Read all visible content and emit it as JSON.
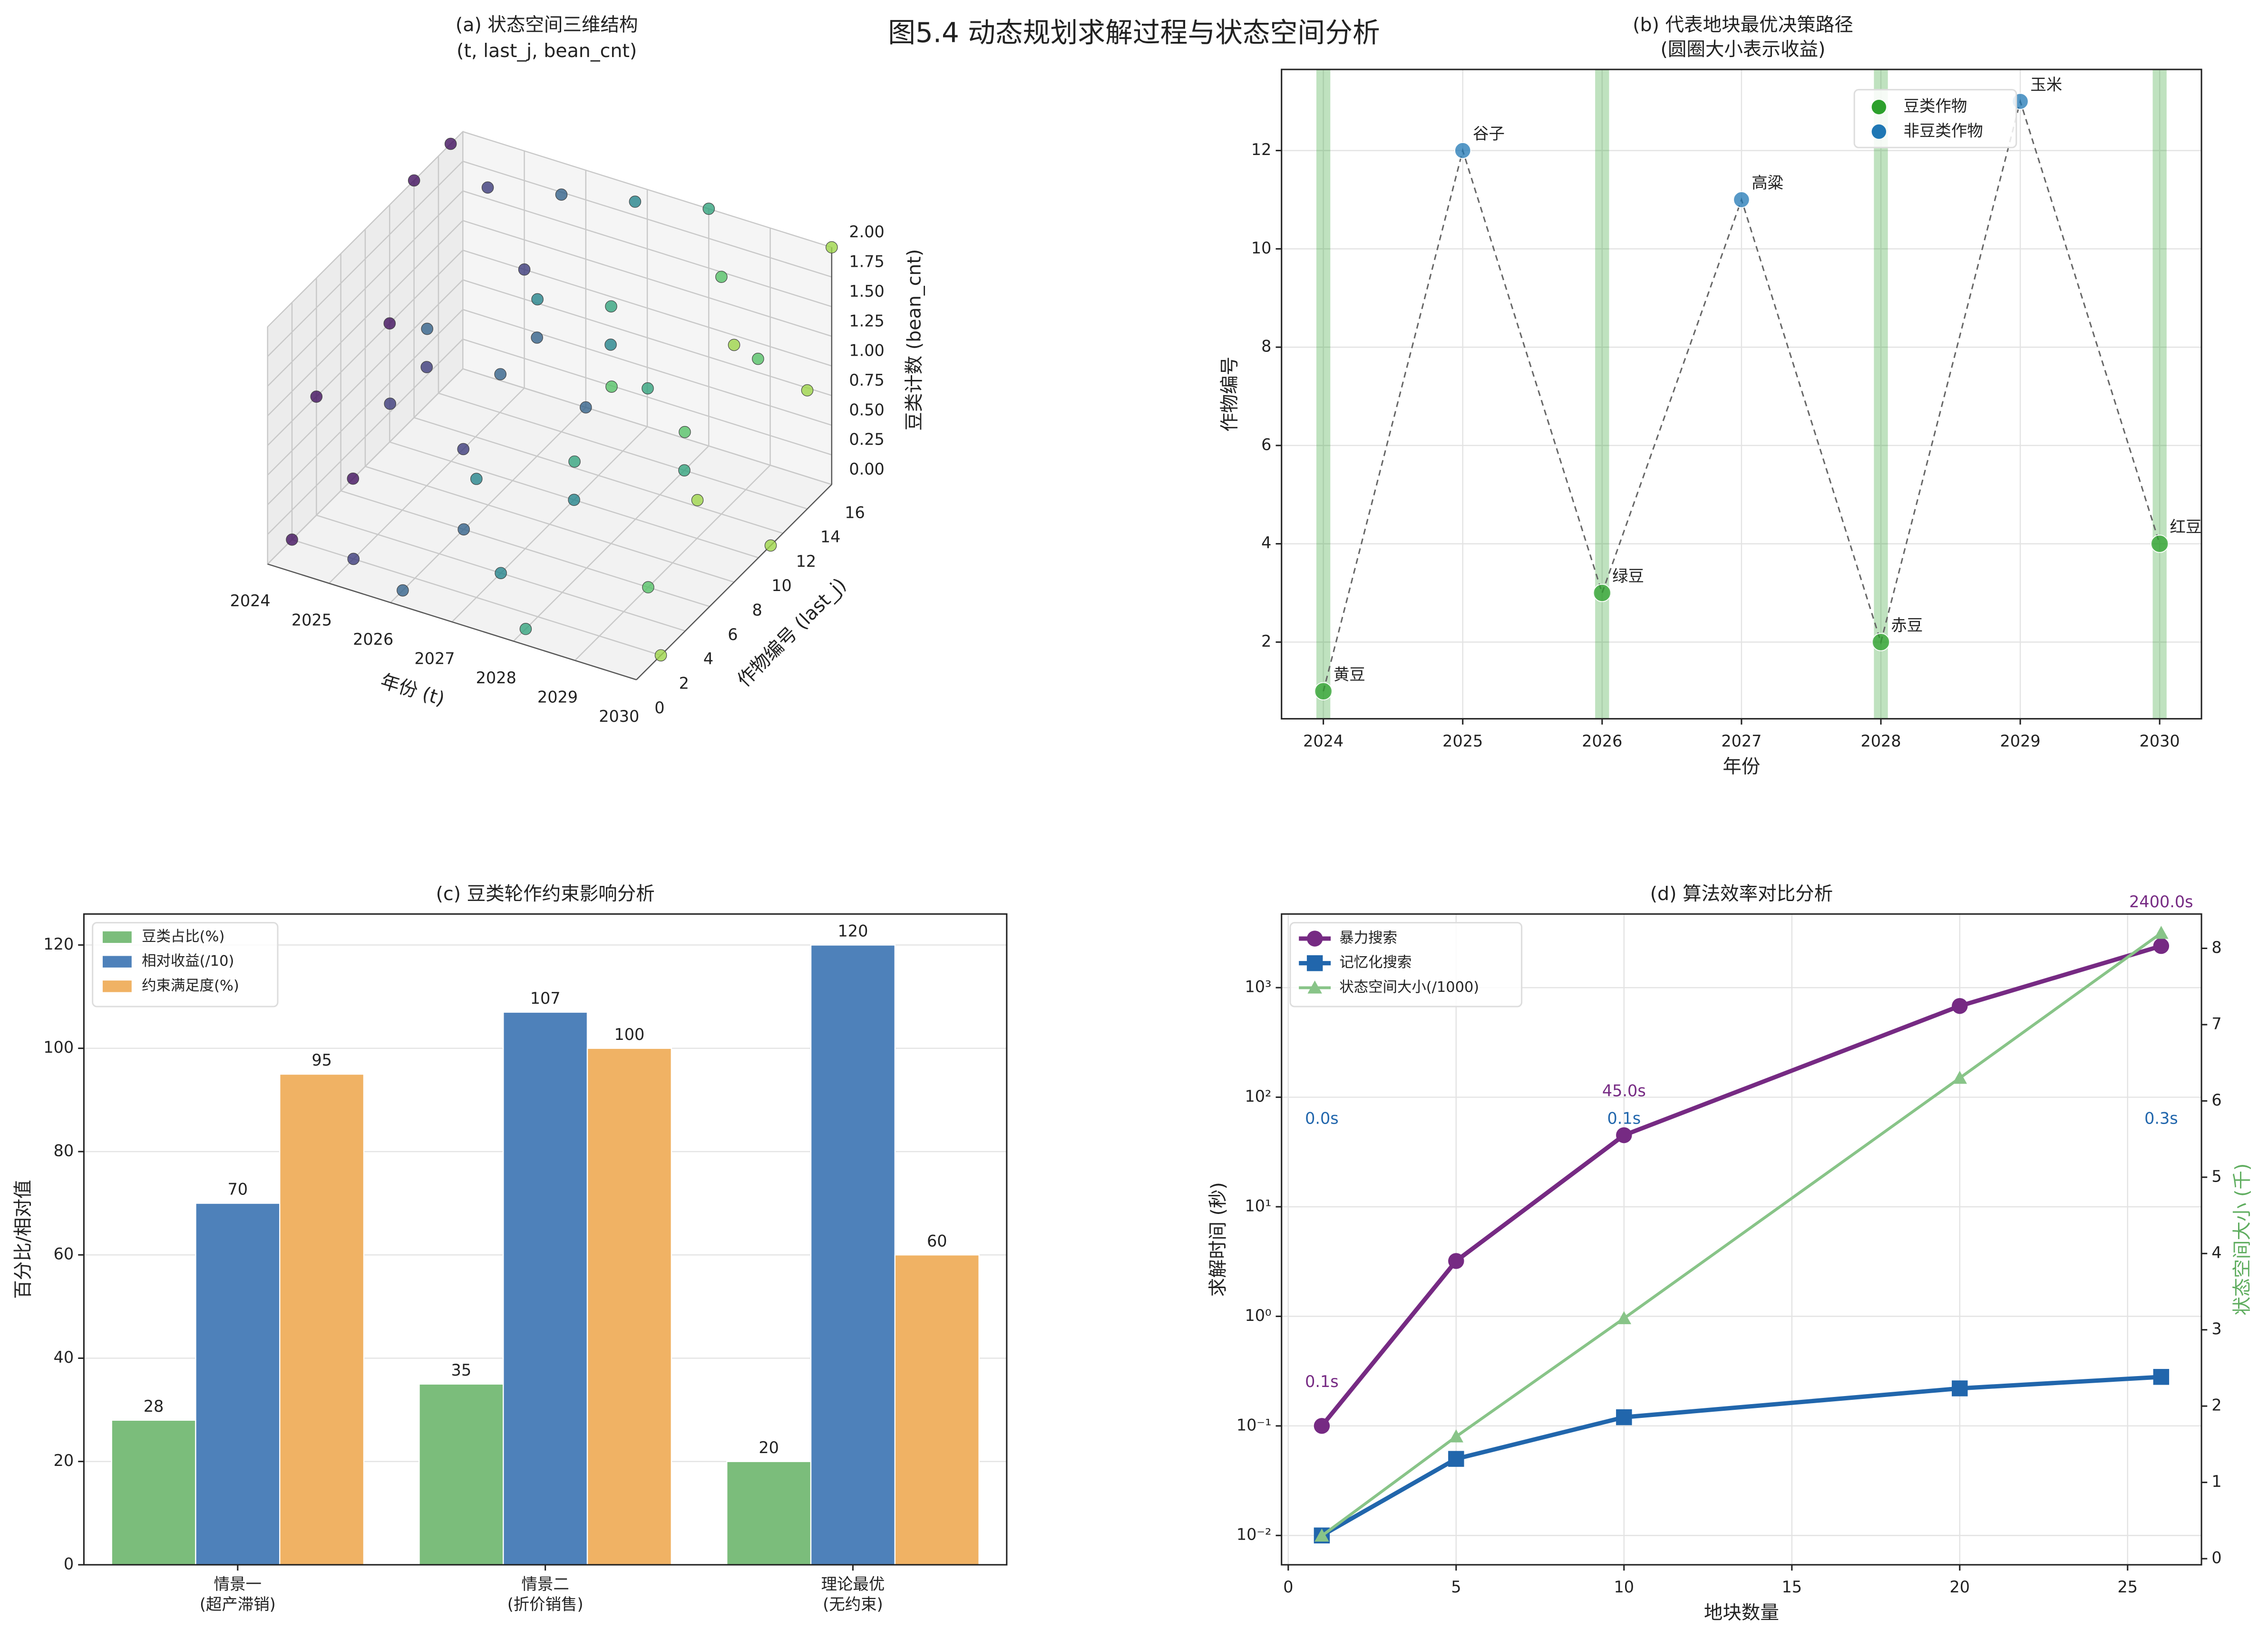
{
  "title": "图5.4 动态规划求解过程与状态空间分析",
  "chart_data": [
    {
      "type": "scatter3d",
      "title": [
        "(a) 状态空间三维结构",
        "(t, last_j, bean_cnt)"
      ],
      "xlabel": "年份 (t)",
      "ylabel": "作物编号 (last_j)",
      "zlabel": "豆类计数 (bean_cnt)",
      "x": [
        2024,
        2024,
        2024,
        2024,
        2024,
        2024,
        2025,
        2025,
        2025,
        2025,
        2025,
        2025,
        2026,
        2026,
        2026,
        2026,
        2026,
        2026,
        2026,
        2027,
        2027,
        2027,
        2027,
        2027,
        2027,
        2028,
        2028,
        2028,
        2028,
        2028,
        2028,
        2029,
        2029,
        2029,
        2029,
        2029,
        2030,
        2030,
        2030,
        2030,
        2030,
        2030
      ],
      "y": [
        2,
        4,
        7,
        10,
        12,
        15,
        2,
        5,
        8,
        11,
        13,
        16,
        1,
        3,
        6,
        9,
        12,
        14,
        16,
        2,
        4,
        7,
        10,
        13,
        15,
        1,
        5,
        8,
        11,
        14,
        16,
        3,
        6,
        9,
        12,
        15,
        2,
        5,
        8,
        11,
        14,
        16
      ],
      "z": [
        0,
        1,
        0,
        1,
        2,
        2,
        0,
        1,
        1,
        0,
        2,
        1,
        0,
        2,
        0,
        1,
        1,
        2,
        0,
        1,
        0,
        2,
        0,
        1,
        2,
        0,
        1,
        2,
        1,
        0,
        2,
        2,
        0,
        1,
        2,
        1,
        0,
        1,
        2,
        0,
        1,
        2
      ],
      "xlim": [
        2024,
        2030
      ],
      "ylim": [
        0,
        16
      ],
      "zlim": [
        0,
        2
      ],
      "xticks": [
        2024,
        2025,
        2026,
        2027,
        2028,
        2029,
        2030
      ],
      "yticks": [
        0,
        2,
        4,
        6,
        8,
        10,
        12,
        14,
        16
      ],
      "zticks": [
        {
          "value": 0,
          "label": "0.00"
        },
        {
          "value": 0.25,
          "label": "0.25"
        },
        {
          "value": 0.5,
          "label": "0.50"
        },
        {
          "value": 0.75,
          "label": "0.75"
        },
        {
          "value": 1,
          "label": "1.00"
        },
        {
          "value": 1.25,
          "label": "1.25"
        },
        {
          "value": 1.5,
          "label": "1.50"
        },
        {
          "value": 1.75,
          "label": "1.75"
        },
        {
          "value": 2,
          "label": "2.00"
        }
      ],
      "colormap": "viridis"
    },
    {
      "type": "path",
      "title": [
        "(b) 代表地块最优决策路径",
        "(圆圈大小表示收益)"
      ],
      "xlabel": "年份",
      "ylabel": "作物编号",
      "x": [
        2024,
        2025,
        2026,
        2027,
        2028,
        2029,
        2030
      ],
      "values": [
        1,
        12,
        3,
        11,
        2,
        13,
        4
      ],
      "labels": [
        "黄豆",
        "谷子",
        "绿豆",
        "高粱",
        "赤豆",
        "玉米",
        "红豆"
      ],
      "group": [
        0,
        1,
        0,
        1,
        0,
        1,
        0
      ],
      "legend": [
        {
          "name": "豆类作物",
          "color": "#2ca02c"
        },
        {
          "name": "非豆类作物",
          "color": "#1f77b4"
        }
      ],
      "band_color": "#2ca02c",
      "xlim": [
        2023.7,
        2030.3
      ],
      "ylim": [
        0.44,
        13.65
      ],
      "xticks": [
        2024,
        2025,
        2026,
        2027,
        2028,
        2029,
        2030
      ],
      "yticks": [
        2,
        4,
        6,
        8,
        10,
        12
      ],
      "grid": true,
      "legend_loc": "upper right"
    },
    {
      "type": "bar",
      "title": "(c) 豆类轮作约束影响分析",
      "ylabel": "百分比/相对值",
      "categories": [
        [
          "情景一",
          "(超产滞销)"
        ],
        [
          "情景二",
          "(折价销售)"
        ],
        [
          "理论最优",
          "(无约束)"
        ]
      ],
      "series": [
        {
          "name": "豆类占比(%)",
          "color": "#7bbd7b",
          "values": [
            28,
            35,
            20
          ]
        },
        {
          "name": "相对收益(/10)",
          "color": "#4e81ba",
          "values": [
            70,
            107,
            120
          ]
        },
        {
          "name": "约束满足度(%)",
          "color": "#f0b264",
          "values": [
            95,
            100,
            60
          ]
        }
      ],
      "ylim": [
        0,
        126
      ],
      "yticks": [
        0,
        20,
        40,
        60,
        80,
        100,
        120
      ],
      "grid": true,
      "legend_loc": "upper left"
    },
    {
      "type": "line",
      "title": "(d) 算法效率对比分析",
      "xlabel": "地块数量",
      "ylabel": "求解时间 (秒)",
      "y2label": "状态空间大小 (千)",
      "x": [
        1,
        5,
        10,
        20,
        26
      ],
      "series": [
        {
          "name": "暴力搜索",
          "color": "#762a83",
          "marker": "circle",
          "values": [
            0.1,
            3.2,
            45,
            680,
            2400
          ],
          "value_labels": [
            "0.1s",
            null,
            "45.0s",
            null,
            "2400.0s"
          ]
        },
        {
          "name": "记忆化搜索",
          "color": "#2166ac",
          "marker": "square",
          "values": [
            0.01,
            0.05,
            0.12,
            0.22,
            0.28
          ],
          "value_labels": [
            "0.0s",
            null,
            "0.1s",
            null,
            "0.3s"
          ]
        },
        {
          "name": "状态空间大小(/1000)",
          "color": "#88c488",
          "marker": "triangle",
          "axis": "y2",
          "values": [
            0.3,
            1.6,
            3.15,
            6.3,
            8.2
          ]
        }
      ],
      "xlim": [
        -0.2,
        27.2
      ],
      "xticks": [
        0,
        5,
        10,
        15,
        20,
        25
      ],
      "ylim": [
        0.0054,
        4700
      ],
      "log_y": true,
      "yticks": [
        {
          "value": 0.01,
          "label": "10⁻²"
        },
        {
          "value": 0.1,
          "label": "10⁻¹"
        },
        {
          "value": 1,
          "label": "10⁰"
        },
        {
          "value": 10,
          "label": "10¹"
        },
        {
          "value": 100,
          "label": "10²"
        },
        {
          "value": 1000,
          "label": "10³"
        }
      ],
      "y2lim": [
        -0.08,
        8.45
      ],
      "y2ticks": [
        0,
        1,
        2,
        3,
        4,
        5,
        6,
        7,
        8
      ],
      "y2color": "#5fad5f",
      "grid": true,
      "legend_loc": "upper left"
    }
  ]
}
